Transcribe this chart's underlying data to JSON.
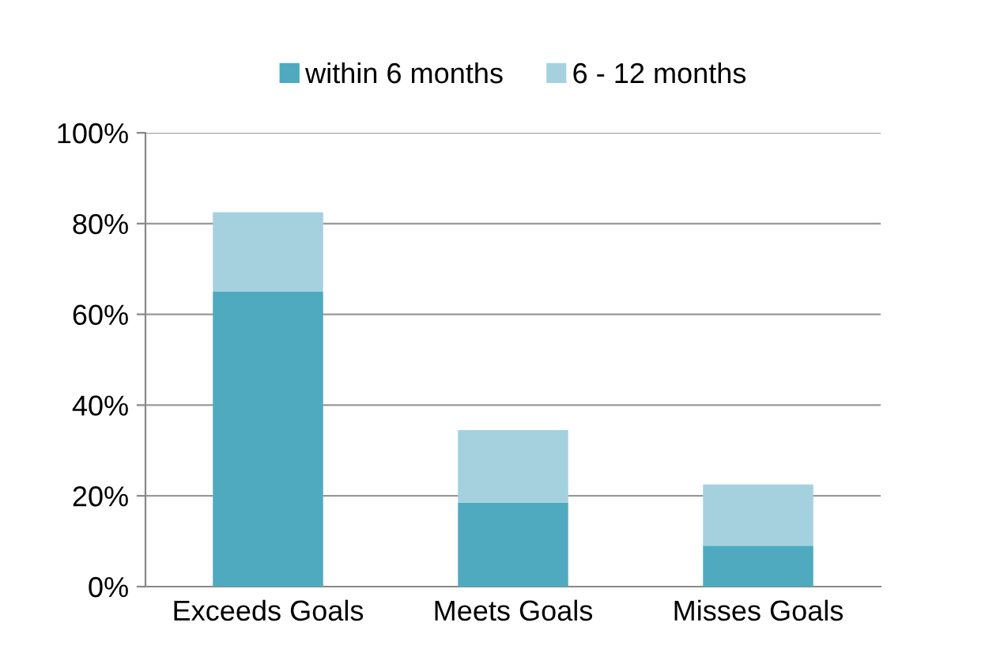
{
  "chart_data": {
    "type": "bar",
    "stacked": true,
    "categories": [
      "Exceeds Goals",
      "Meets Goals",
      "Misses Goals"
    ],
    "series": [
      {
        "name": "within 6 months",
        "color": "#4faac0",
        "values": [
          65,
          18.5,
          9
        ]
      },
      {
        "name": "6 - 12 months",
        "color": "#a5d1de",
        "values": [
          17.5,
          16,
          13.5
        ]
      }
    ],
    "ylim": [
      0,
      100
    ],
    "yticks": [
      {
        "value": 0,
        "label": "0%"
      },
      {
        "value": 20,
        "label": "20%"
      },
      {
        "value": 40,
        "label": "40%"
      },
      {
        "value": 60,
        "label": "60%"
      },
      {
        "value": 80,
        "label": "80%"
      },
      {
        "value": 100,
        "label": "100%"
      }
    ],
    "grid": "y",
    "legend": "top"
  }
}
